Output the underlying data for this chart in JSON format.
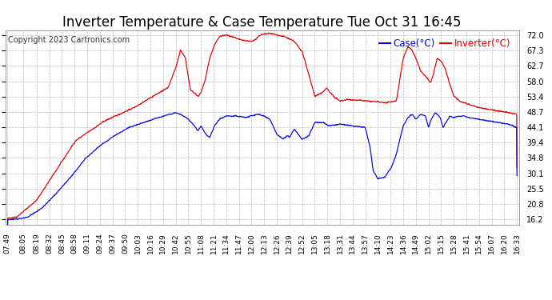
{
  "title": "Inverter Temperature & Case Temperature Tue Oct 31 16:45",
  "copyright": "Copyright 2023 Cartronics.com",
  "legend_case": "Case(°C)",
  "legend_inverter": "Inverter(°C)",
  "yticks": [
    16.2,
    20.8,
    25.5,
    30.1,
    34.8,
    39.4,
    44.1,
    48.7,
    53.4,
    58.0,
    62.7,
    67.3,
    72.0
  ],
  "ylim": [
    14.5,
    73.5
  ],
  "bg_color": "#ffffff",
  "grid_color": "#bbbbbb",
  "case_color": "#0000dd",
  "inverter_color": "#dd0000",
  "title_fontsize": 12,
  "copyright_fontsize": 7,
  "legend_fontsize": 8.5,
  "tick_fontsize": 7,
  "xtick_labels": [
    "07:49",
    "08:05",
    "08:19",
    "08:32",
    "08:45",
    "08:58",
    "09:11",
    "09:24",
    "09:37",
    "09:50",
    "10:03",
    "10:16",
    "10:29",
    "10:42",
    "10:55",
    "11:08",
    "11:21",
    "11:34",
    "11:47",
    "12:00",
    "12:13",
    "12:26",
    "12:39",
    "12:52",
    "13:05",
    "13:18",
    "13:31",
    "13:44",
    "13:57",
    "14:10",
    "14:23",
    "14:36",
    "14:49",
    "15:02",
    "15:15",
    "15:28",
    "15:41",
    "15:54",
    "16:07",
    "16:20",
    "16:33"
  ]
}
